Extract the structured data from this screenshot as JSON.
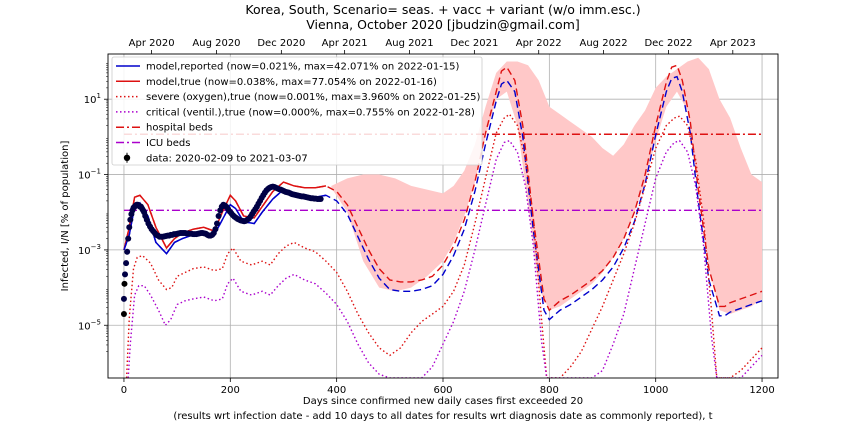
{
  "chart_data": {
    "type": "line",
    "title": [
      "Korea, South, Scenario= seas. + vacc + variant (w/o imm.esc.)",
      "Vienna, October 2020 [jbudzin@gmail.com]"
    ],
    "xlabel": [
      "Days since confirmed new daily cases first exceeded 20",
      "(results wrt infection date - add 10 days to all dates for results wrt diagnosis date as commonly reported), t"
    ],
    "ylabel": "Infected, I/N [% of population]",
    "xlim": [
      -30,
      1230
    ],
    "ylim_log10": [
      -6.4,
      2.2
    ],
    "y_scale": "log",
    "grid": true,
    "legend_position": "top-left",
    "x_ticks": [
      0,
      200,
      400,
      600,
      800,
      1000,
      1200
    ],
    "x_tick_labels": [
      "0",
      "200",
      "400",
      "600",
      "800",
      "1000",
      "1200"
    ],
    "y_ticks_log10": [
      -5,
      -3,
      -1,
      1
    ],
    "y_tick_labels": [
      "10",
      "10",
      "10",
      "10"
    ],
    "y_tick_exponents": [
      "−5",
      "−3",
      "−1",
      "1"
    ],
    "top_axis": {
      "ticks": [
        52,
        174,
        296,
        415,
        537,
        659,
        780,
        902,
        1024,
        1145
      ],
      "labels": [
        "Apr 2020",
        "Aug 2020",
        "Dec 2020",
        "Apr 2021",
        "Aug 2021",
        "Dec 2021",
        "Apr 2022",
        "Aug 2022",
        "Dec 2022",
        "Apr 2023"
      ]
    },
    "colors": {
      "reported": "#0000cc",
      "true": "#dd1111",
      "severe": "#dd1111",
      "critical": "#aa00cc",
      "hospital": "#dd1111",
      "icu": "#aa00cc",
      "band": "#ffc8c8",
      "data": "#000044"
    },
    "legend": [
      {
        "key": "reported",
        "label": "model,reported (now=0.021%, max=42.071% on 2022-01-15)",
        "style": "solid"
      },
      {
        "key": "true",
        "label": "model,true (now=0.038%, max=77.054% on 2022-01-16)",
        "style": "solid"
      },
      {
        "key": "severe",
        "label": "severe (oxygen),true (now=0.001%, max=3.960% on 2022-01-25)",
        "style": "dotted"
      },
      {
        "key": "critical",
        "label": "critical (ventil.),true (now=0.000%, max=0.755% on 2022-01-28)",
        "style": "dotted"
      },
      {
        "key": "hospital",
        "label": "hospital beds",
        "style": "dashdot"
      },
      {
        "key": "icu",
        "label": "ICU beds",
        "style": "dashdot"
      },
      {
        "key": "data",
        "label": "data: 2020-02-09 to 2021-03-07",
        "style": "marker"
      }
    ],
    "hospital_beds_log10": 0.07,
    "icu_beds_log10": -1.95,
    "series": [
      {
        "key": "true",
        "x": [
          0,
          10,
          20,
          30,
          45,
          60,
          80,
          95,
          110,
          130,
          150,
          170,
          185,
          200,
          210,
          225,
          245,
          260,
          280,
          300,
          320,
          340,
          360,
          380,
          400,
          420,
          440,
          460,
          480,
          500,
          520,
          540,
          560,
          580,
          600,
          620,
          640,
          660,
          680,
          700,
          710,
          720,
          735,
          750,
          770,
          790,
          800,
          820,
          840,
          860,
          880,
          900,
          920,
          940,
          960,
          980,
          1000,
          1020,
          1030,
          1040,
          1050,
          1065,
          1080,
          1100,
          1120,
          1130,
          1140,
          1160,
          1180,
          1200
        ],
        "log10": [
          -3.0,
          -2.4,
          -1.6,
          -1.55,
          -1.8,
          -2.4,
          -2.95,
          -2.7,
          -2.55,
          -2.45,
          -2.4,
          -2.5,
          -2.0,
          -1.55,
          -1.7,
          -2.1,
          -2.15,
          -1.85,
          -1.45,
          -1.2,
          -1.3,
          -1.35,
          -1.35,
          -1.3,
          -1.45,
          -1.8,
          -2.4,
          -3.0,
          -3.5,
          -3.8,
          -3.85,
          -3.85,
          -3.8,
          -3.7,
          -3.4,
          -2.9,
          -2.2,
          -1.2,
          0.1,
          1.2,
          1.75,
          1.85,
          1.5,
          0.3,
          -2.2,
          -4.3,
          -4.6,
          -4.35,
          -4.2,
          -4.0,
          -3.8,
          -3.55,
          -3.2,
          -2.7,
          -2.0,
          -1.0,
          0.3,
          1.45,
          1.85,
          1.9,
          1.5,
          0.4,
          -1.4,
          -3.5,
          -4.5,
          -4.5,
          -4.4,
          -4.3,
          -4.2,
          -4.1
        ]
      },
      {
        "key": "reported",
        "x": [
          0,
          10,
          20,
          30,
          45,
          60,
          80,
          95,
          110,
          130,
          150,
          170,
          185,
          200,
          210,
          225,
          245,
          260,
          280,
          300,
          320,
          340,
          360,
          380,
          400,
          420,
          440,
          460,
          480,
          500,
          520,
          540,
          560,
          580,
          600,
          620,
          640,
          660,
          680,
          700,
          710,
          720,
          735,
          750,
          770,
          790,
          800,
          820,
          840,
          860,
          880,
          900,
          920,
          940,
          960,
          980,
          1000,
          1020,
          1030,
          1040,
          1050,
          1065,
          1080,
          1100,
          1120,
          1130,
          1140,
          1160,
          1180,
          1200
        ],
        "log10": [
          -3.0,
          -2.6,
          -1.85,
          -1.75,
          -2.1,
          -2.8,
          -3.1,
          -2.8,
          -2.7,
          -2.6,
          -2.55,
          -2.6,
          -2.2,
          -1.8,
          -1.9,
          -2.25,
          -2.3,
          -2.0,
          -1.65,
          -1.4,
          -1.55,
          -1.6,
          -1.6,
          -1.55,
          -1.7,
          -2.05,
          -2.65,
          -3.25,
          -3.75,
          -4.05,
          -4.1,
          -4.1,
          -4.05,
          -3.95,
          -3.65,
          -3.15,
          -2.45,
          -1.45,
          -0.2,
          0.95,
          1.4,
          1.5,
          1.2,
          0.0,
          -2.5,
          -4.6,
          -4.85,
          -4.6,
          -4.45,
          -4.25,
          -4.05,
          -3.8,
          -3.45,
          -2.95,
          -2.25,
          -1.25,
          0.05,
          1.2,
          1.55,
          1.6,
          1.2,
          0.1,
          -1.7,
          -3.8,
          -4.75,
          -4.75,
          -4.65,
          -4.55,
          -4.45,
          -4.35
        ]
      },
      {
        "key": "severe",
        "x": [
          5,
          10,
          18,
          25,
          35,
          50,
          65,
          80,
          90,
          100,
          115,
          130,
          150,
          170,
          185,
          195,
          205,
          220,
          240,
          260,
          275,
          290,
          305,
          320,
          340,
          360,
          380,
          400,
          420,
          440,
          460,
          480,
          500,
          520,
          540,
          560,
          580,
          600,
          620,
          640,
          660,
          680,
          700,
          715,
          725,
          740,
          755,
          770,
          785,
          795,
          805,
          820,
          840,
          860,
          880,
          900,
          920,
          940,
          960,
          980,
          1000,
          1020,
          1035,
          1045,
          1060,
          1075,
          1090,
          1105,
          1115,
          1125,
          1140,
          1160,
          1180,
          1200
        ],
        "log10": [
          -6.4,
          -4.8,
          -3.5,
          -3.2,
          -3.15,
          -3.35,
          -3.8,
          -4.05,
          -4.0,
          -3.7,
          -3.6,
          -3.5,
          -3.45,
          -3.55,
          -3.5,
          -3.1,
          -2.95,
          -3.3,
          -3.4,
          -3.3,
          -3.4,
          -3.1,
          -2.9,
          -2.8,
          -2.95,
          -3.05,
          -3.3,
          -3.6,
          -4.1,
          -4.7,
          -5.2,
          -5.6,
          -5.8,
          -5.6,
          -5.2,
          -4.9,
          -4.7,
          -4.5,
          -4.1,
          -3.4,
          -2.3,
          -1.1,
          0.1,
          0.5,
          0.6,
          0.3,
          -0.6,
          -2.2,
          -4.8,
          -6.4,
          -6.4,
          -6.4,
          -6.1,
          -5.7,
          -5.1,
          -4.5,
          -3.8,
          -3.1,
          -2.3,
          -1.3,
          -0.3,
          0.3,
          0.5,
          0.55,
          0.3,
          -0.6,
          -2.2,
          -4.6,
          -6.4,
          -6.4,
          -6.4,
          -6.2,
          -5.9,
          -5.6
        ]
      },
      {
        "key": "critical",
        "x": [
          8,
          12,
          20,
          28,
          38,
          50,
          65,
          78,
          88,
          100,
          115,
          130,
          150,
          170,
          185,
          195,
          205,
          220,
          240,
          260,
          275,
          290,
          305,
          320,
          340,
          360,
          380,
          400,
          420,
          440,
          460,
          480,
          500,
          520,
          540,
          560,
          580,
          600,
          620,
          640,
          660,
          680,
          700,
          715,
          725,
          740,
          755,
          770,
          785,
          795,
          805,
          820,
          840,
          860,
          880,
          900,
          920,
          940,
          960,
          980,
          1000,
          1020,
          1035,
          1045,
          1060,
          1075,
          1090,
          1105,
          1115,
          1125,
          1140,
          1160,
          1180,
          1200
        ],
        "log10": [
          -6.4,
          -5.5,
          -4.2,
          -3.95,
          -3.95,
          -4.2,
          -4.6,
          -5.0,
          -4.85,
          -4.45,
          -4.35,
          -4.3,
          -4.25,
          -4.35,
          -4.3,
          -3.9,
          -3.75,
          -4.1,
          -4.2,
          -4.1,
          -4.2,
          -3.95,
          -3.75,
          -3.65,
          -3.8,
          -3.9,
          -4.15,
          -4.45,
          -4.9,
          -5.5,
          -6.0,
          -6.3,
          -6.4,
          -6.4,
          -6.4,
          -6.4,
          -6.1,
          -5.5,
          -4.9,
          -4.1,
          -3.0,
          -1.8,
          -0.6,
          -0.15,
          -0.1,
          -0.4,
          -1.3,
          -2.9,
          -5.4,
          -6.4,
          -6.4,
          -6.4,
          -6.4,
          -6.4,
          -6.4,
          -6.2,
          -5.5,
          -4.7,
          -3.5,
          -2.3,
          -1.1,
          -0.4,
          -0.15,
          -0.1,
          -0.4,
          -1.3,
          -2.9,
          -5.3,
          -6.4,
          -6.4,
          -6.4,
          -6.4,
          -6.1,
          -5.8
        ]
      }
    ],
    "band": {
      "x": [
        390,
        420,
        450,
        480,
        510,
        540,
        570,
        600,
        620,
        640,
        660,
        680,
        700,
        720,
        740,
        760,
        780,
        800,
        820,
        840,
        860,
        880,
        900,
        920,
        940,
        960,
        980,
        1000,
        1020,
        1040,
        1060,
        1080,
        1100,
        1120,
        1140,
        1160,
        1180,
        1200
      ],
      "upper_log10": [
        -1.3,
        -1.1,
        -1.0,
        -1.0,
        -1.1,
        -1.3,
        -1.4,
        -1.5,
        -1.3,
        -0.9,
        -0.2,
        0.8,
        1.7,
        2.0,
        2.0,
        1.9,
        1.5,
        0.8,
        0.6,
        0.4,
        0.2,
        0.0,
        -0.3,
        -0.5,
        -0.2,
        0.3,
        0.7,
        1.3,
        1.6,
        1.8,
        2.0,
        2.1,
        1.8,
        1.0,
        0.5,
        -0.3,
        -1.0,
        -1.2
      ],
      "lower_log10": [
        -1.35,
        -2.0,
        -3.3,
        -4.0,
        -4.1,
        -4.0,
        -3.7,
        -3.3,
        -2.8,
        -2.1,
        -1.2,
        0.0,
        1.0,
        1.2,
        0.3,
        -1.8,
        -4.0,
        -4.6,
        -4.5,
        -4.3,
        -4.1,
        -3.9,
        -3.6,
        -3.2,
        -2.7,
        -2.0,
        -1.2,
        -0.1,
        0.8,
        1.2,
        0.7,
        -1.3,
        -3.5,
        -4.6,
        -4.7,
        -4.6,
        -4.5,
        -4.3
      ]
    },
    "observed": {
      "label": "data: 2020-02-09 to 2021-03-07",
      "x": [
        0,
        2,
        4,
        6,
        8,
        10,
        12,
        14,
        16,
        18,
        20,
        22,
        24,
        26,
        28,
        30,
        32,
        34,
        36,
        38,
        40,
        43,
        46,
        49,
        52,
        55,
        58,
        61,
        64,
        67,
        70,
        73,
        76,
        79,
        82,
        85,
        88,
        91,
        94,
        97,
        100,
        103,
        106,
        109,
        112,
        115,
        118,
        121,
        124,
        127,
        130,
        133,
        136,
        139,
        142,
        145,
        148,
        151,
        154,
        157,
        160,
        163,
        166,
        169,
        172,
        175,
        178,
        181,
        184,
        187,
        190,
        193,
        196,
        199,
        202,
        205,
        208,
        211,
        214,
        217,
        220,
        223,
        226,
        229,
        232,
        235,
        238,
        241,
        244,
        247,
        250,
        253,
        256,
        259,
        262,
        265,
        268,
        271,
        274,
        277,
        280,
        283,
        286,
        289,
        292,
        295,
        298,
        301,
        304,
        307,
        310,
        313,
        316,
        319,
        322,
        325,
        328,
        331,
        334,
        337,
        340,
        343,
        346,
        349,
        352,
        355,
        358,
        361,
        364,
        367,
        370,
        373,
        376,
        379,
        382,
        385,
        388,
        391,
        394
      ],
      "log10": [
        -4.3,
        -3.65,
        -3.35,
        -3.05,
        -2.7,
        -2.4,
        -2.2,
        -2.05,
        -1.95,
        -1.88,
        -1.85,
        -1.82,
        -1.8,
        -1.8,
        -1.82,
        -1.85,
        -1.85,
        -1.9,
        -1.95,
        -2.0,
        -2.1,
        -2.2,
        -2.3,
        -2.38,
        -2.45,
        -2.5,
        -2.55,
        -2.6,
        -2.62,
        -2.65,
        -2.65,
        -2.65,
        -2.64,
        -2.63,
        -2.62,
        -2.62,
        -2.6,
        -2.6,
        -2.58,
        -2.58,
        -2.57,
        -2.56,
        -2.55,
        -2.55,
        -2.55,
        -2.55,
        -2.56,
        -2.56,
        -2.57,
        -2.57,
        -2.58,
        -2.58,
        -2.58,
        -2.57,
        -2.56,
        -2.55,
        -2.55,
        -2.56,
        -2.57,
        -2.6,
        -2.62,
        -2.62,
        -2.6,
        -2.55,
        -2.45,
        -2.3,
        -2.1,
        -1.95,
        -1.85,
        -1.8,
        -1.82,
        -1.86,
        -1.92,
        -1.98,
        -2.03,
        -2.08,
        -2.12,
        -2.15,
        -2.18,
        -2.2,
        -2.22,
        -2.23,
        -2.24,
        -2.23,
        -2.2,
        -2.17,
        -2.12,
        -2.05,
        -1.98,
        -1.92,
        -1.85,
        -1.77,
        -1.7,
        -1.62,
        -1.55,
        -1.48,
        -1.42,
        -1.38,
        -1.35,
        -1.33,
        -1.32,
        -1.33,
        -1.35,
        -1.37,
        -1.39,
        -1.4,
        -1.42,
        -1.44,
        -1.46,
        -1.47,
        -1.48,
        -1.5,
        -1.52,
        -1.53,
        -1.54,
        -1.55,
        -1.56,
        -1.57,
        -1.58,
        -1.58,
        -1.59,
        -1.6,
        -1.61,
        -1.62,
        -1.63,
        -1.63,
        -1.64,
        -1.64,
        -1.65,
        -1.65,
        -1.65
      ]
    }
  }
}
